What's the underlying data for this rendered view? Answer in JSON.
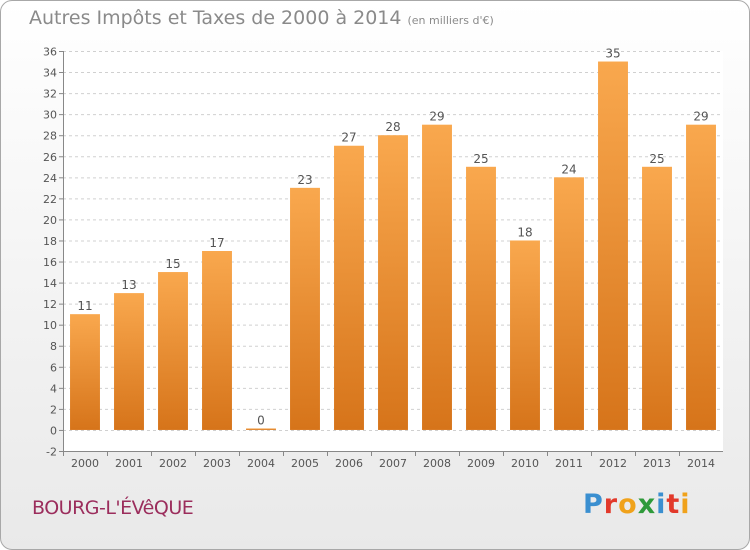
{
  "title": "Autres Impôts et Taxes de 2000 à 2014",
  "subtitle": "(en milliers d'€)",
  "commune": "BOURG-L'ÉVêQUE",
  "logo": {
    "letters": [
      "P",
      "r",
      "o",
      "x",
      "i",
      "t",
      "i"
    ],
    "colors": [
      "#3a8fd0",
      "#e2392b",
      "#f0a21b",
      "#2e9a3a",
      "#3a8fd0",
      "#e2392b",
      "#f0a21b"
    ]
  },
  "colors": {
    "bar_light": "#f9a84e",
    "bar_dark": "#d6741a",
    "grid": "#d0d0d0",
    "axis_text": "#555555",
    "commune": "#9b2d5c",
    "title": "#8a8a8a"
  },
  "chart_data": {
    "type": "bar",
    "title": "Autres Impôts et Taxes de 2000 à 2014",
    "subtitle": "(en milliers d'€)",
    "categories": [
      "2000",
      "2001",
      "2002",
      "2003",
      "2004",
      "2005",
      "2006",
      "2007",
      "2008",
      "2009",
      "2010",
      "2011",
      "2012",
      "2013",
      "2014"
    ],
    "values": [
      11,
      13,
      15,
      17,
      0,
      23,
      27,
      28,
      29,
      25,
      18,
      24,
      35,
      25,
      29
    ],
    "ylim": [
      -2,
      36
    ],
    "yticks": [
      -2,
      0,
      2,
      4,
      6,
      8,
      10,
      12,
      14,
      16,
      18,
      20,
      22,
      24,
      26,
      28,
      30,
      32,
      34,
      36
    ],
    "grid": true,
    "data_labels": true
  }
}
